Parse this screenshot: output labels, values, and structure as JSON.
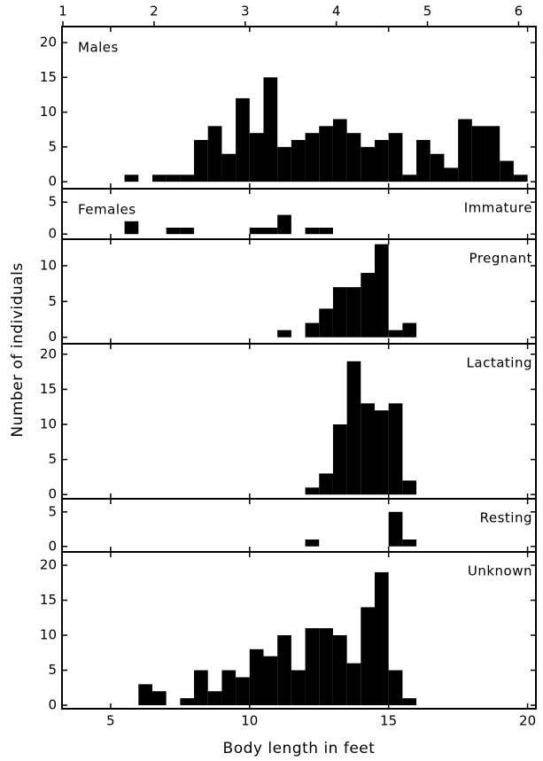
{
  "chart_data": [
    {
      "type": "histogram",
      "label": "Males",
      "color": "#000000",
      "bins": [
        5.5,
        6,
        6.5,
        7,
        7.5,
        8,
        8.5,
        9,
        9.5,
        10,
        10.5,
        11,
        11.5,
        12,
        12.5,
        13,
        13.5,
        14,
        14.5,
        15,
        15.5,
        16,
        16.5,
        17,
        17.5,
        18,
        18.5,
        19,
        19.5,
        20
      ],
      "values": [
        1,
        0,
        1,
        1,
        1,
        6,
        8,
        4,
        12,
        7,
        15,
        5,
        6,
        7,
        8,
        9,
        7,
        5,
        6,
        7,
        1,
        6,
        4,
        2,
        9,
        8,
        8,
        3,
        1
      ],
      "xlim": [
        3.25,
        20.3
      ],
      "ylim": [
        -1,
        22.3
      ],
      "yticks": [
        0,
        5,
        10,
        15,
        20
      ],
      "x2lim": [
        0.99,
        6.19
      ],
      "x2ticks": [
        1,
        2,
        3,
        4,
        5,
        6
      ]
    },
    {
      "type": "histogram",
      "group_label": "Females",
      "label": "Immature",
      "color": "#000000",
      "bins": [
        5.5,
        6,
        6.5,
        7,
        7.5,
        8,
        8.5,
        9,
        9.5,
        10,
        10.5,
        11,
        11.5,
        12,
        12.5,
        13
      ],
      "values": [
        2,
        0,
        0,
        1,
        1,
        0,
        0,
        0,
        0,
        1,
        1,
        3,
        0,
        1,
        1
      ],
      "xlim": [
        3.25,
        20.3
      ],
      "ylim": [
        -0.8,
        7.1
      ],
      "yticks": [
        0,
        5
      ]
    },
    {
      "type": "histogram",
      "label": "Pregnant",
      "color": "#000000",
      "bins": [
        11,
        11.5,
        12,
        12.5,
        13,
        13.5,
        14,
        14.5,
        15,
        15.5,
        16
      ],
      "values": [
        1,
        0,
        2,
        4,
        7,
        7,
        9,
        13,
        1,
        2
      ],
      "xlim": [
        3.25,
        20.3
      ],
      "ylim": [
        -0.9,
        13.7
      ],
      "yticks": [
        0,
        5,
        10
      ]
    },
    {
      "type": "histogram",
      "label": "Lactating",
      "color": "#000000",
      "y_label": "Number of individuals",
      "bins": [
        12,
        12.5,
        13,
        13.5,
        14,
        14.5,
        15,
        15.5,
        16
      ],
      "values": [
        1,
        3,
        10,
        19,
        13,
        12,
        13,
        2
      ],
      "xlim": [
        3.25,
        20.3
      ],
      "ylim": [
        -0.6,
        21.5
      ],
      "yticks": [
        0,
        5,
        10,
        15,
        20
      ]
    },
    {
      "type": "histogram",
      "label": "Resting",
      "color": "#000000",
      "bins": [
        12,
        12.5,
        13,
        13.5,
        14,
        14.5,
        15,
        15.5,
        16
      ],
      "values": [
        1,
        0,
        0,
        0,
        0,
        0,
        5,
        1
      ],
      "xlim": [
        3.25,
        20.3
      ],
      "ylim": [
        -0.8,
        6.9
      ],
      "yticks": [
        0,
        5
      ]
    },
    {
      "type": "histogram",
      "label": "Unknown",
      "color": "#000000",
      "x_label": "Body length in feet",
      "bins": [
        6,
        6.5,
        7,
        7.5,
        8,
        8.5,
        9,
        9.5,
        10,
        10.5,
        11,
        11.5,
        12,
        12.5,
        13,
        13.5,
        14,
        14.5,
        15,
        15.5,
        16
      ],
      "values": [
        3,
        2,
        0,
        1,
        5,
        2,
        5,
        4,
        8,
        7,
        10,
        5,
        11,
        11,
        10,
        6,
        14,
        19,
        5,
        1
      ],
      "xlim": [
        3.25,
        20.3
      ],
      "ylim": [
        -0.5,
        21.9
      ],
      "yticks": [
        0,
        5,
        10,
        15,
        20
      ],
      "xticks": [
        5,
        10,
        15,
        20
      ]
    }
  ]
}
